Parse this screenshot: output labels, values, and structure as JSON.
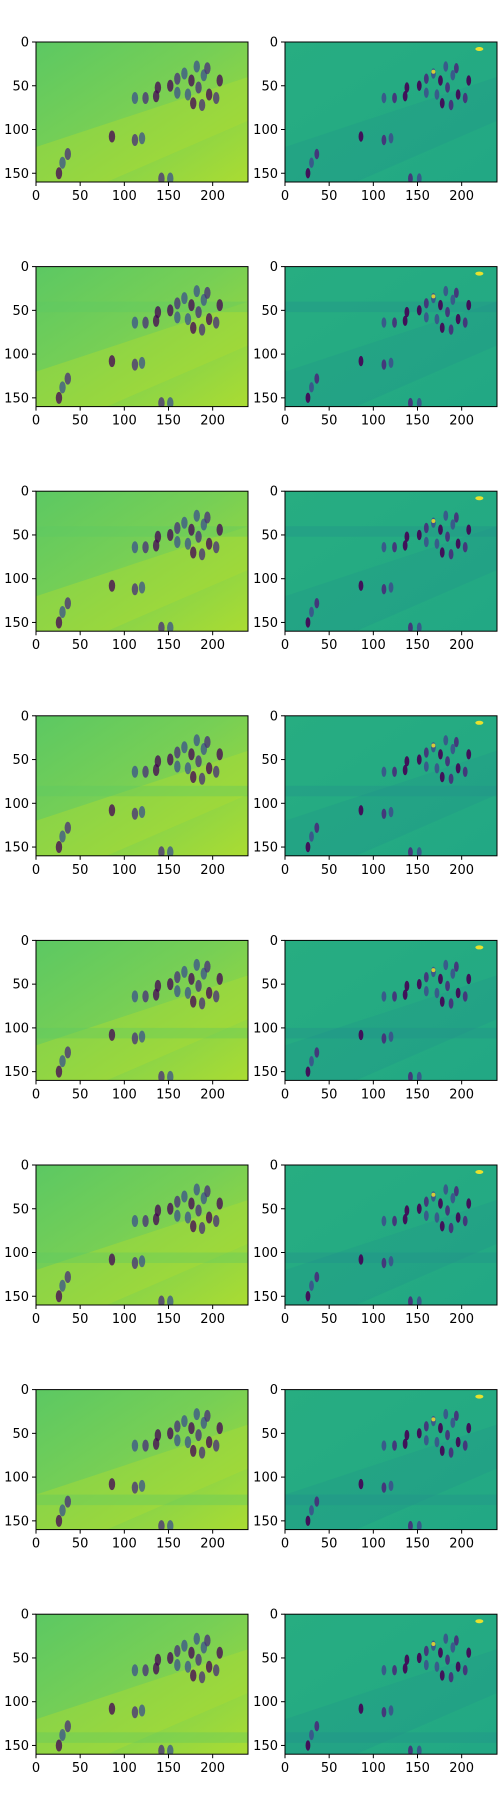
{
  "chart_data": {
    "type": "heatmap",
    "layout": {
      "rows": 8,
      "columns": 2
    },
    "colormap": "viridis",
    "colors": {
      "dark": "#440154",
      "purple": "#472c7a",
      "blue": "#3b528b",
      "teal": "#2c728e",
      "teal_green": "#21908d",
      "green": "#27ad81",
      "light_green": "#5cc863",
      "yellow_green": "#aadc32",
      "yellow": "#fde725"
    },
    "image_width": 240,
    "image_height": 160,
    "xlim": [
      0,
      240
    ],
    "ylim": [
      160,
      0
    ],
    "xticks": [
      0,
      50,
      100,
      150,
      200
    ],
    "yticks": [
      0,
      50,
      100,
      150
    ],
    "grid": false,
    "legend": "none",
    "panels": [
      {
        "row": 1,
        "column": 1,
        "title": "",
        "xticks": [
          "0",
          "50",
          "100",
          "150",
          "200"
        ],
        "yticks": [
          "0",
          "50",
          "100",
          "150"
        ]
      },
      {
        "row": 1,
        "column": 2,
        "title": "",
        "xticks": [
          "0",
          "50",
          "100",
          "150",
          "200"
        ],
        "yticks": [
          "0",
          "50",
          "100",
          "150"
        ]
      },
      {
        "row": 2,
        "column": 1,
        "title": "",
        "xticks": [
          "0",
          "50",
          "100",
          "150",
          "200"
        ],
        "yticks": [
          "0",
          "50",
          "100",
          "150"
        ]
      },
      {
        "row": 2,
        "column": 2,
        "title": "",
        "xticks": [
          "0",
          "50",
          "100",
          "150",
          "200"
        ],
        "yticks": [
          "0",
          "50",
          "100",
          "150"
        ]
      },
      {
        "row": 3,
        "column": 1,
        "title": "",
        "xticks": [
          "0",
          "50",
          "100",
          "150",
          "200"
        ],
        "yticks": [
          "0",
          "50",
          "100",
          "150"
        ]
      },
      {
        "row": 3,
        "column": 2,
        "title": "",
        "xticks": [
          "0",
          "50",
          "100",
          "150",
          "200"
        ],
        "yticks": [
          "0",
          "50",
          "100",
          "150"
        ]
      },
      {
        "row": 4,
        "column": 1,
        "title": "",
        "xticks": [
          "0",
          "50",
          "100",
          "150",
          "200"
        ],
        "yticks": [
          "0",
          "50",
          "100",
          "150"
        ]
      },
      {
        "row": 4,
        "column": 2,
        "title": "",
        "xticks": [
          "0",
          "50",
          "100",
          "150",
          "200"
        ],
        "yticks": [
          "0",
          "50",
          "100",
          "150"
        ]
      },
      {
        "row": 5,
        "column": 1,
        "title": "",
        "xticks": [
          "0",
          "50",
          "100",
          "150",
          "200"
        ],
        "yticks": [
          "0",
          "50",
          "100",
          "150"
        ]
      },
      {
        "row": 5,
        "column": 2,
        "title": "",
        "xticks": [
          "0",
          "50",
          "100",
          "150",
          "200"
        ],
        "yticks": [
          "0",
          "50",
          "100",
          "150"
        ]
      },
      {
        "row": 6,
        "column": 1,
        "title": "",
        "xticks": [
          "0",
          "50",
          "100",
          "150",
          "200"
        ],
        "yticks": [
          "0",
          "50",
          "100",
          "150"
        ]
      },
      {
        "row": 6,
        "column": 2,
        "title": "",
        "xticks": [
          "0",
          "50",
          "100",
          "150",
          "200"
        ],
        "yticks": [
          "0",
          "50",
          "100",
          "150"
        ]
      },
      {
        "row": 7,
        "column": 1,
        "title": "",
        "xticks": [
          "0",
          "50",
          "100",
          "150",
          "200"
        ],
        "yticks": [
          "0",
          "50",
          "100",
          "150"
        ]
      },
      {
        "row": 7,
        "column": 2,
        "title": "",
        "xticks": [
          "0",
          "50",
          "100",
          "150",
          "200"
        ],
        "yticks": [
          "0",
          "50",
          "100",
          "150"
        ]
      },
      {
        "row": 8,
        "column": 1,
        "title": "",
        "xticks": [
          "0",
          "50",
          "100",
          "150",
          "200"
        ],
        "yticks": [
          "0",
          "50",
          "100",
          "150"
        ]
      },
      {
        "row": 8,
        "column": 2,
        "title": "",
        "xticks": [
          "0",
          "50",
          "100",
          "150",
          "200"
        ],
        "yticks": [
          "0",
          "50",
          "100",
          "150"
        ]
      }
    ]
  }
}
